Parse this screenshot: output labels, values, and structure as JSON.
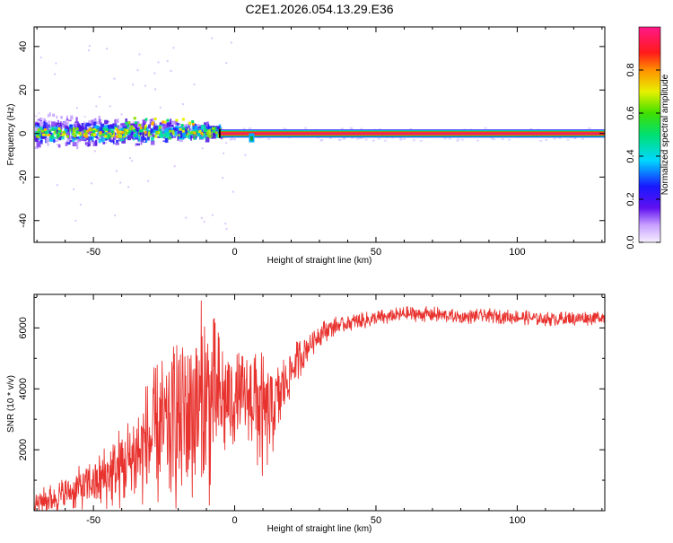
{
  "title": "C2E1.2026.054.13.29.E36",
  "colors": {
    "background": "#ffffff",
    "axis": "#000000",
    "snr_line": "#e8322e",
    "track_core": "#e21e7a",
    "track_band": "#1fa02a"
  },
  "chart_data": [
    {
      "type": "heatmap",
      "name": "spectrogram",
      "xlabel": "Height of straight line (km)",
      "ylabel": "Frequency (Hz)",
      "xlim": [
        -71,
        131
      ],
      "ylim": [
        -50,
        49
      ],
      "xticks": [
        -50,
        0,
        50,
        100
      ],
      "yticks": [
        -40,
        -20,
        0,
        20,
        40
      ],
      "colorbar": {
        "label": "Normalized spectral amplitude",
        "range": [
          0,
          1
        ],
        "ticks": [
          0.0,
          0.2,
          0.4,
          0.6,
          0.8
        ],
        "colormap": "rainbow: white-lavender, violet, blue, cyan, green, yellow, orange, red, magenta"
      },
      "dominant_track": {
        "frequency_hz": 0,
        "x_start_km": -5,
        "x_end_km": 131,
        "amplitude": 1.0
      },
      "noisy_region": {
        "x_start_km": -71,
        "x_end_km": -5,
        "frequency_spread_hz": [
          -10,
          12
        ]
      },
      "notch": {
        "x_km": 6,
        "frequency_hz": -2
      }
    },
    {
      "type": "line",
      "name": "snr",
      "xlabel": "Height of straight line (km)",
      "ylabel": "SNR (10 * v/v)",
      "xlim": [
        -71,
        131
      ],
      "ylim": [
        0,
        7100
      ],
      "xticks": [
        -50,
        0,
        50,
        100
      ],
      "yticks": [
        2000,
        4000,
        6000
      ],
      "series": [
        {
          "name": "SNR",
          "color": "#e8322e",
          "x": [
            -71,
            -65,
            -60,
            -55,
            -50,
            -45,
            -40,
            -35,
            -30,
            -25,
            -20,
            -15,
            -10,
            -5,
            0,
            5,
            8,
            10,
            15,
            20,
            25,
            30,
            35,
            40,
            50,
            60,
            70,
            80,
            90,
            100,
            110,
            120,
            131
          ],
          "values": [
            250,
            400,
            550,
            750,
            900,
            1150,
            1450,
            1800,
            2300,
            2600,
            3100,
            3300,
            3400,
            3600,
            3650,
            3700,
            3750,
            3000,
            3600,
            4600,
            5300,
            5800,
            6050,
            6150,
            6300,
            6450,
            6450,
            6350,
            6400,
            6350,
            6300,
            6300,
            6350
          ],
          "noise": [
            250,
            300,
            350,
            450,
            550,
            700,
            900,
            1100,
            1400,
            1700,
            2000,
            2200,
            2300,
            1400,
            1000,
            900,
            1600,
            1300,
            900,
            500,
            350,
            250,
            200,
            180,
            170,
            160,
            160,
            150,
            150,
            150,
            150,
            150,
            150
          ]
        }
      ]
    }
  ]
}
